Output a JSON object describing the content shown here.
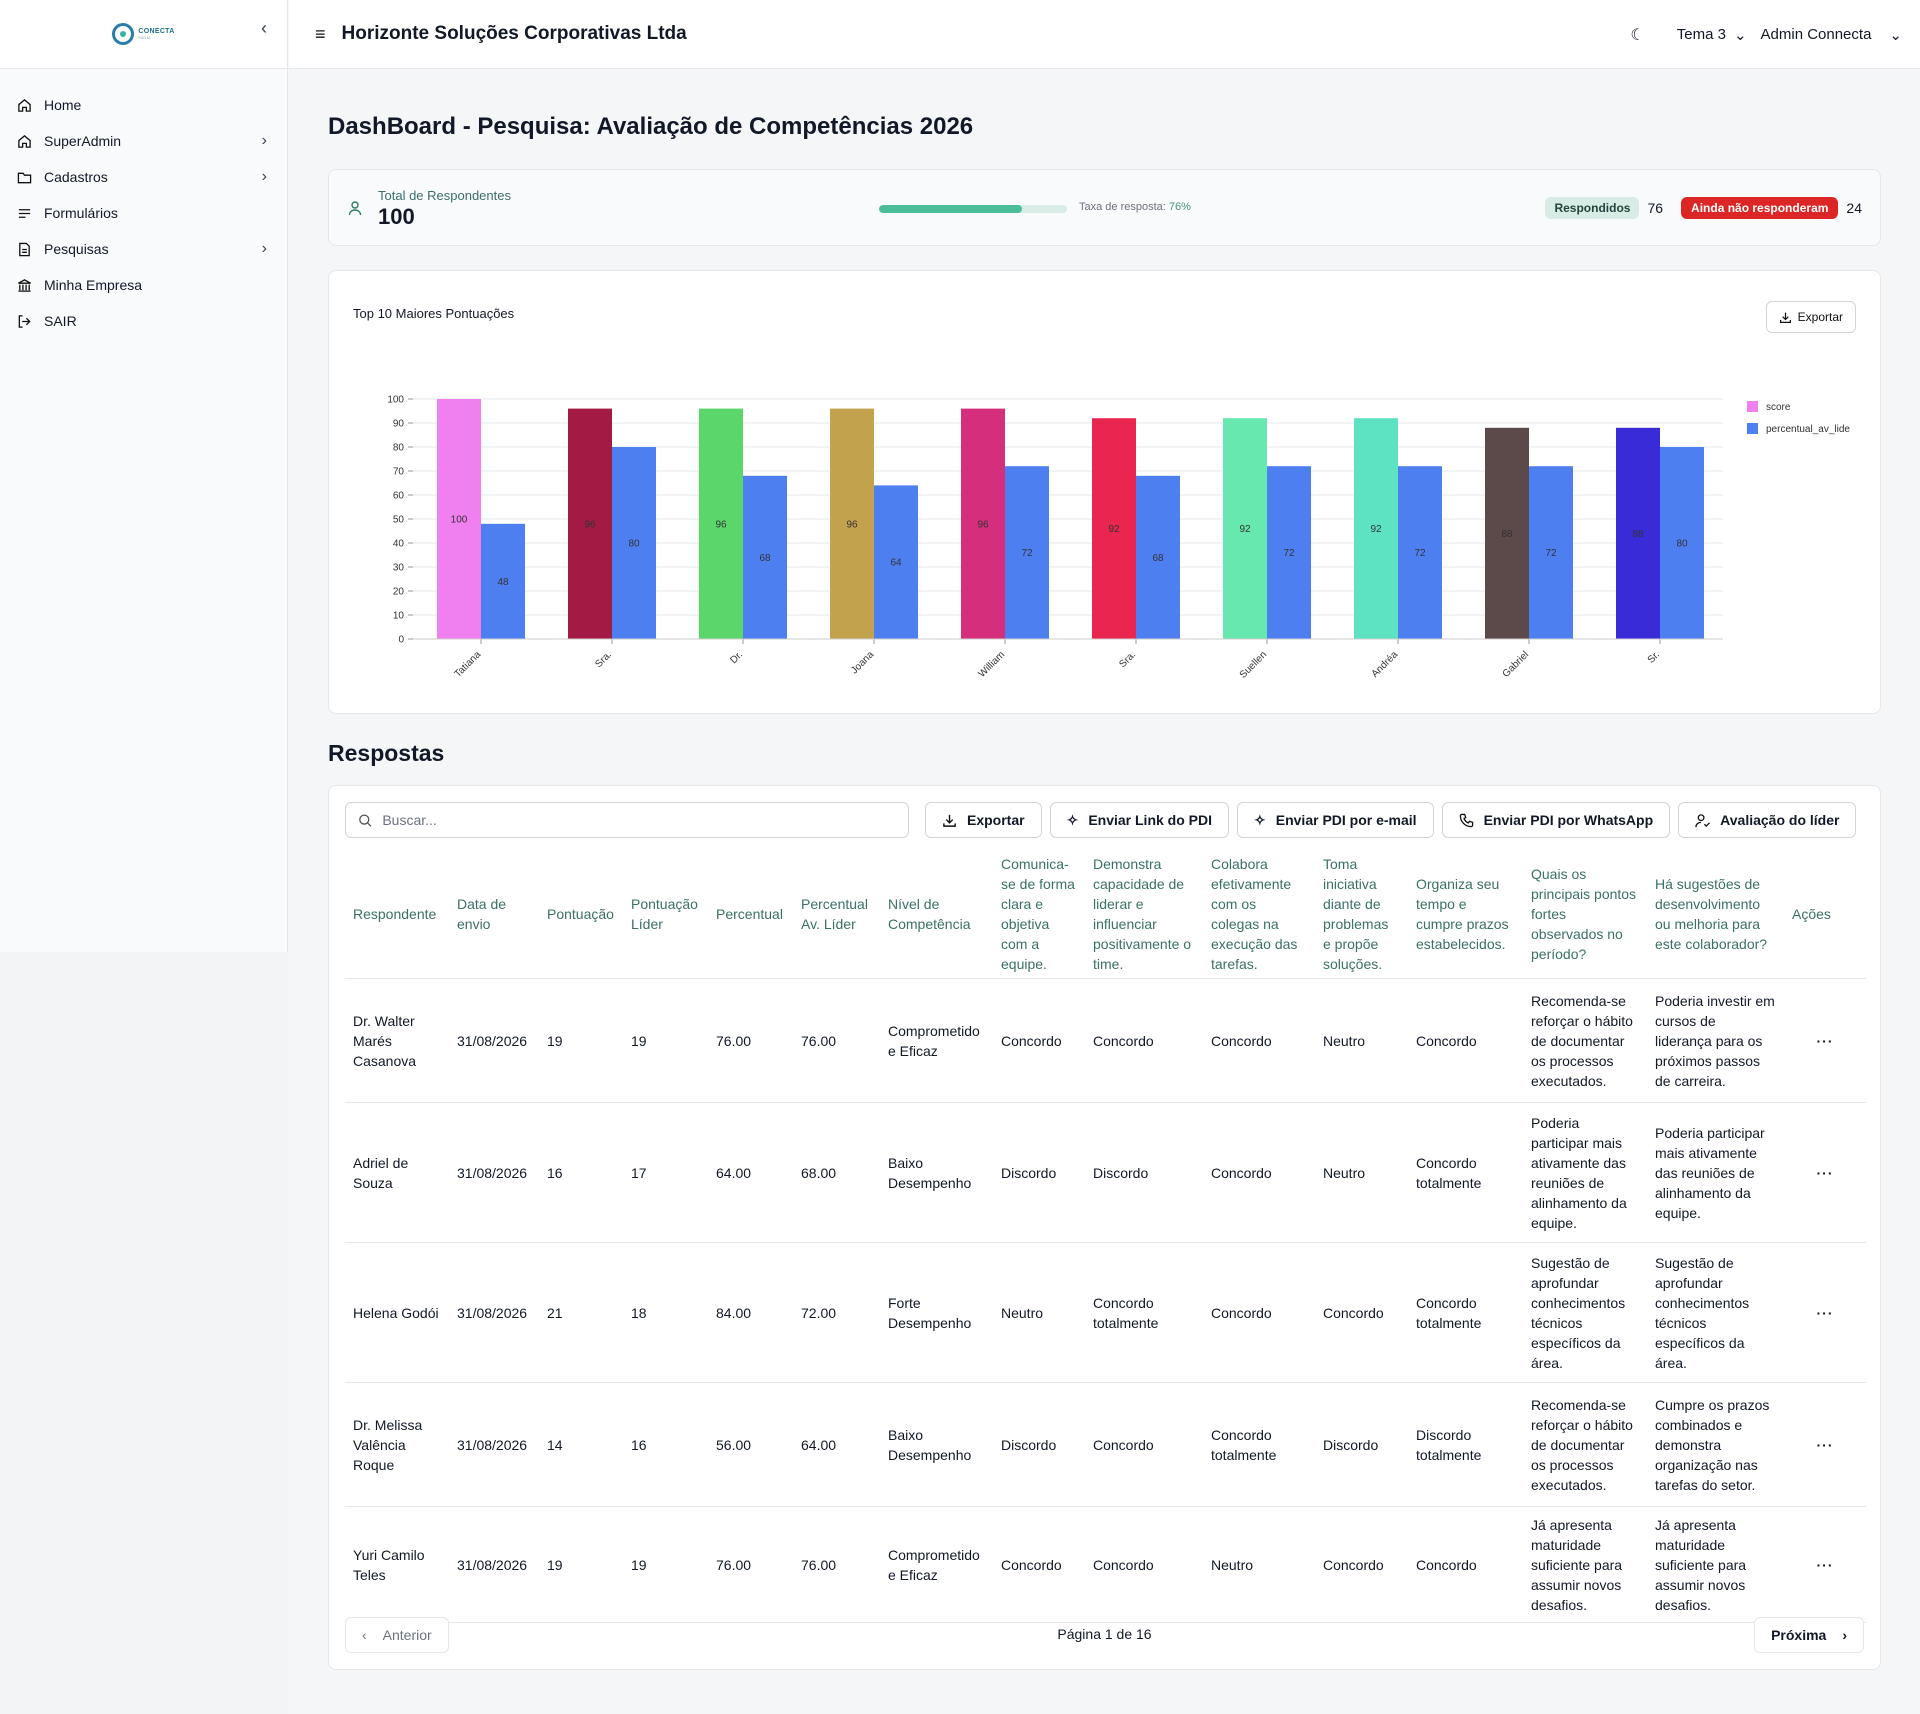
{
  "sidebar": {
    "logo_text": "CONECTA",
    "logo_sub": "MIDIA",
    "items": [
      {
        "label": "Home",
        "icon": "home-icon"
      },
      {
        "label": "SuperAdmin",
        "icon": "home-icon"
      },
      {
        "label": "Cadastros",
        "icon": "folder-icon"
      },
      {
        "label": "Formulários",
        "icon": "list-icon"
      },
      {
        "label": "Pesquisas",
        "icon": "file-text-icon"
      },
      {
        "label": "Minha Empresa",
        "icon": "bank-icon"
      },
      {
        "label": "SAIR",
        "icon": "logout-icon"
      }
    ]
  },
  "topbar": {
    "company": "Horizonte Soluções Corporativas Ltda",
    "theme": "Tema 3",
    "user": "Admin Connecta"
  },
  "page": {
    "title": "DashBoard - Pesquisa: Avaliação de Competências 2026"
  },
  "stats": {
    "total_label": "Total de Respondentes",
    "total": "100",
    "rate_label": "Taxa de resposta:",
    "rate_value": "76%",
    "rate_fraction": 0.76,
    "answered_label": "Respondidos",
    "answered": "76",
    "pending_label": "Ainda não responderam",
    "pending": "24"
  },
  "chart": {
    "export_label": "Exportar"
  },
  "chart_data": {
    "type": "bar",
    "title": "Top 10 Maiores Pontuações",
    "categories": [
      "Tatiana",
      "Sra.",
      "Dr.",
      "Joana",
      "William",
      "Sra.",
      "Suellen",
      "Andréa",
      "Gabriel",
      "Sr."
    ],
    "series": [
      {
        "name": "score",
        "values": [
          100,
          96,
          96,
          96,
          96,
          92,
          92,
          92,
          88,
          88
        ],
        "colors": [
          "#f07ff0",
          "#a31a45",
          "#5bd66b",
          "#c3a24e",
          "#d52e7c",
          "#e8264f",
          "#66e8ae",
          "#5de3c2",
          "#5c4949",
          "#3a2bd8"
        ]
      },
      {
        "name": "percentual_av_lider",
        "values": [
          48,
          80,
          68,
          64,
          72,
          68,
          72,
          72,
          72,
          80
        ],
        "color": "#4e7ff0"
      }
    ],
    "ylim": [
      0,
      100
    ],
    "yticks": [
      0,
      10,
      20,
      30,
      40,
      50,
      60,
      70,
      80,
      90,
      100
    ],
    "legend": "right",
    "legend_labels": [
      "score",
      "percentual_av_lide"
    ],
    "grid": true
  },
  "respostas": {
    "title": "Respostas",
    "search_placeholder": "Buscar...",
    "buttons": {
      "export": "Exportar",
      "pdi_link": "Enviar Link do PDI",
      "pdi_email": "Enviar PDI por e-mail",
      "pdi_whatsapp": "Enviar PDI por WhatsApp",
      "leader_eval": "Avaliação do líder"
    },
    "columns": [
      "Respondente",
      "Data de envio",
      "Pontuação",
      "Pontuação Líder",
      "Percentual",
      "Percentual Av. Líder",
      "Nível de Competência",
      "Comunica-se de forma clara e objetiva com a equipe.",
      "Demonstra capacidade de liderar e influenciar positivamente o time.",
      "Colabora efetivamente com os colegas na execução das tarefas.",
      "Toma iniciativa diante de problemas e propõe soluções.",
      "Organiza seu tempo e cumpre prazos estabelecidos.",
      "Quais os principais pontos fortes observados no período?",
      "Há sugestões de desenvolvimento ou melhoria para este colaborador?",
      "Ações"
    ],
    "rows": [
      [
        "Dr. Walter Marés Casanova",
        "31/08/2026",
        "19",
        "19",
        "76.00",
        "76.00",
        "Comprometido e Eficaz",
        "Concordo",
        "Concordo",
        "Concordo",
        "Neutro",
        "Concordo",
        "Recomenda-se reforçar o hábito de documentar os processos executados.",
        "Poderia investir em cursos de liderança para os próximos passos de carreira.",
        "···"
      ],
      [
        "Adriel de Souza",
        "31/08/2026",
        "16",
        "17",
        "64.00",
        "68.00",
        "Baixo Desempenho",
        "Discordo",
        "Discordo",
        "Concordo",
        "Neutro",
        "Concordo totalmente",
        "Poderia participar mais ativamente das reuniões de alinhamento da equipe.",
        "Poderia participar mais ativamente das reuniões de alinhamento da equipe.",
        "···"
      ],
      [
        "Helena Godói",
        "31/08/2026",
        "21",
        "18",
        "84.00",
        "72.00",
        "Forte Desempenho",
        "Neutro",
        "Concordo totalmente",
        "Concordo",
        "Concordo",
        "Concordo totalmente",
        "Sugestão de aprofundar conhecimentos técnicos específicos da área.",
        "Sugestão de aprofundar conhecimentos técnicos específicos da área.",
        "···"
      ],
      [
        "Dr. Melissa Valência Roque",
        "31/08/2026",
        "14",
        "16",
        "56.00",
        "64.00",
        "Baixo Desempenho",
        "Discordo",
        "Concordo",
        "Concordo totalmente",
        "Discordo",
        "Discordo totalmente",
        "Recomenda-se reforçar o hábito de documentar os processos executados.",
        "Cumpre os prazos combinados e demonstra organização nas tarefas do setor.",
        "···"
      ],
      [
        "Yuri Camilo Teles",
        "31/08/2026",
        "19",
        "19",
        "76.00",
        "76.00",
        "Comprometido e Eficaz",
        "Concordo",
        "Concordo",
        "Neutro",
        "Concordo",
        "Concordo",
        "Já apresenta maturidade suficiente para assumir novos desafios.",
        "Já apresenta maturidade suficiente para assumir novos desafios.",
        "···"
      ]
    ],
    "pagination": {
      "prev": "Anterior",
      "info": "Página 1 de 16",
      "next": "Próxima"
    }
  }
}
